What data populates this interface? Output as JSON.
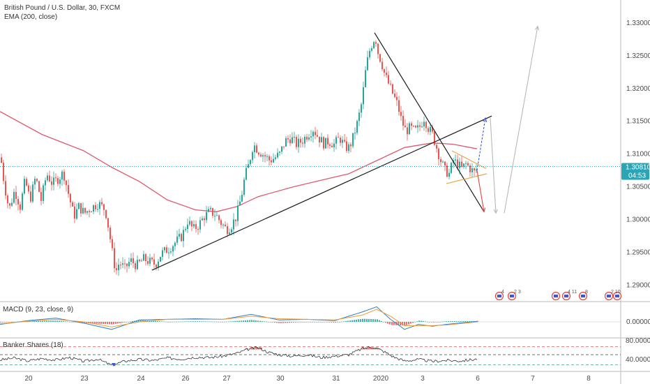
{
  "header": {
    "symbol_line": "British Pound / U.S. Dollar, 30, FXCM",
    "indicator_line": "EMA (200, close)"
  },
  "price_axis": {
    "ticks": [
      "1.33000",
      "1.32500",
      "1.32000",
      "1.31500",
      "1.31000",
      "1.30500",
      "1.30000",
      "1.29500",
      "1.29000"
    ],
    "current_price": "1.30810",
    "countdown": "04:53"
  },
  "macd_panel": {
    "label": "MACD (9, 23, close, 9)",
    "tick": "0.00000"
  },
  "rsi_panel": {
    "label": "Banker Shares (18)",
    "ticks": [
      "80.00000",
      "40.00000"
    ]
  },
  "time_axis": {
    "labels": [
      "20",
      "23",
      "24",
      "26",
      "27",
      "30",
      "31",
      "2020",
      "3",
      "6",
      "7",
      "8"
    ]
  },
  "event_markers": [
    "4",
    "2 3",
    "4 11",
    "8",
    "2 10"
  ],
  "colors": {
    "up": "#26a69a",
    "down": "#ef5350",
    "ema": "#e05a6d",
    "price_line": "#2aa5b6",
    "macd": "#2e7ec9",
    "signal": "#f39a32"
  },
  "chart_data": {
    "type": "candlestick",
    "instrument": "British Pound / U.S. Dollar",
    "timeframe": "30",
    "ylim": [
      1.2875,
      1.3335
    ],
    "y_ticks": [
      1.29,
      1.295,
      1.3,
      1.305,
      1.31,
      1.315,
      1.32,
      1.325,
      1.33
    ],
    "current_price": 1.3081,
    "price_path": [
      [
        0,
        1.3095
      ],
      [
        5,
        1.3055
      ],
      [
        12,
        1.3015
      ],
      [
        20,
        1.3045
      ],
      [
        28,
        1.302
      ],
      [
        35,
        1.306
      ],
      [
        42,
        1.303
      ],
      [
        50,
        1.3065
      ],
      [
        58,
        1.303
      ],
      [
        66,
        1.307
      ],
      [
        74,
        1.3055
      ],
      [
        82,
        1.3062
      ],
      [
        90,
        1.3072
      ],
      [
        97,
        1.304
      ],
      [
        105,
        1.3005
      ],
      [
        112,
        1.302
      ],
      [
        120,
        1.301
      ],
      [
        130,
        1.3018
      ],
      [
        140,
        1.3025
      ],
      [
        150,
        1.3015
      ],
      [
        155,
        1.2985
      ],
      [
        160,
        1.295
      ],
      [
        165,
        1.292
      ],
      [
        170,
        1.2935
      ],
      [
        178,
        1.2925
      ],
      [
        186,
        1.2938
      ],
      [
        195,
        1.293
      ],
      [
        205,
        1.294
      ],
      [
        215,
        1.2935
      ],
      [
        222,
        1.2932
      ],
      [
        230,
        1.2948
      ],
      [
        240,
        1.2955
      ],
      [
        250,
        1.2965
      ],
      [
        260,
        1.2975
      ],
      [
        268,
        1.2998
      ],
      [
        276,
        1.2985
      ],
      [
        284,
        1.2992
      ],
      [
        292,
        1.3005
      ],
      [
        300,
        1.3012
      ],
      [
        308,
        1.3008
      ],
      [
        316,
        1.2995
      ],
      [
        324,
        1.2985
      ],
      [
        330,
        1.299
      ],
      [
        338,
        1.3005
      ],
      [
        345,
        1.3035
      ],
      [
        350,
        1.3065
      ],
      [
        356,
        1.3085
      ],
      [
        362,
        1.3115
      ],
      [
        370,
        1.3105
      ],
      [
        378,
        1.3098
      ],
      [
        386,
        1.309
      ],
      [
        394,
        1.3095
      ],
      [
        400,
        1.31
      ],
      [
        408,
        1.312
      ],
      [
        416,
        1.3125
      ],
      [
        424,
        1.3115
      ],
      [
        432,
        1.312
      ],
      [
        440,
        1.313
      ],
      [
        448,
        1.3138
      ],
      [
        456,
        1.3125
      ],
      [
        464,
        1.3115
      ],
      [
        470,
        1.312
      ],
      [
        478,
        1.3115
      ],
      [
        486,
        1.3125
      ],
      [
        494,
        1.311
      ],
      [
        500,
        1.311
      ],
      [
        506,
        1.3128
      ],
      [
        512,
        1.315
      ],
      [
        518,
        1.318
      ],
      [
        523,
        1.3225
      ],
      [
        528,
        1.3255
      ],
      [
        533,
        1.327
      ],
      [
        537,
        1.328
      ],
      [
        541,
        1.3255
      ],
      [
        546,
        1.324
      ],
      [
        551,
        1.322
      ],
      [
        557,
        1.3205
      ],
      [
        563,
        1.319
      ],
      [
        569,
        1.3175
      ],
      [
        575,
        1.315
      ],
      [
        581,
        1.3135
      ],
      [
        587,
        1.314
      ],
      [
        594,
        1.3135
      ],
      [
        600,
        1.314
      ],
      [
        607,
        1.3155
      ],
      [
        613,
        1.314
      ],
      [
        619,
        1.313
      ],
      [
        625,
        1.311
      ],
      [
        631,
        1.309
      ],
      [
        637,
        1.3075
      ],
      [
        643,
        1.307
      ],
      [
        649,
        1.309
      ],
      [
        655,
        1.3085
      ],
      [
        661,
        1.3078
      ],
      [
        667,
        1.3085
      ],
      [
        673,
        1.3078
      ],
      [
        679,
        1.3072
      ],
      [
        685,
        1.3081
      ]
    ],
    "ema_200": [
      [
        0,
        1.3165
      ],
      [
        60,
        1.313
      ],
      [
        120,
        1.3105
      ],
      [
        160,
        1.308
      ],
      [
        200,
        1.3058
      ],
      [
        240,
        1.303
      ],
      [
        280,
        1.3015
      ],
      [
        310,
        1.3012
      ],
      [
        340,
        1.302
      ],
      [
        370,
        1.3035
      ],
      [
        420,
        1.305
      ],
      [
        460,
        1.306
      ],
      [
        500,
        1.307
      ],
      [
        540,
        1.309
      ],
      [
        580,
        1.311
      ],
      [
        620,
        1.3117
      ],
      [
        650,
        1.3115
      ],
      [
        684,
        1.3108
      ]
    ],
    "trendlines": [
      {
        "from": [
          218,
          1.2923
        ],
        "to": [
          705,
          1.3158
        ]
      },
      {
        "from": [
          537,
          1.3285
        ],
        "to": [
          694,
          1.3012
        ]
      }
    ],
    "wedge": [
      {
        "from": [
          648,
          1.3105
        ],
        "to": [
          697,
          1.3078
        ]
      },
      {
        "from": [
          640,
          1.3055
        ],
        "to": [
          698,
          1.307
        ]
      }
    ],
    "projection_arrows": [
      {
        "color": "blue",
        "from": [
          684,
          1.3075
        ],
        "to": [
          696,
          1.3155
        ]
      },
      {
        "color": "red",
        "from": [
          684,
          1.3075
        ],
        "to": [
          694,
          1.3012
        ]
      },
      {
        "color": "grey",
        "from": [
          703,
          1.3155
        ],
        "to": [
          711,
          1.301
        ]
      },
      {
        "color": "grey",
        "from": [
          723,
          1.301
        ],
        "to": [
          771,
          1.3295
        ]
      }
    ],
    "macd": {
      "label": "MACD (9, 23, close, 9)",
      "macd_line": [
        [
          0,
          -0.0004
        ],
        [
          40,
          0.0002
        ],
        [
          80,
          0.0006
        ],
        [
          120,
          -0.0002
        ],
        [
          160,
          -0.0012
        ],
        [
          200,
          0.0003
        ],
        [
          240,
          0.0004
        ],
        [
          280,
          0.0005
        ],
        [
          320,
          0.0004
        ],
        [
          360,
          0.0012
        ],
        [
          400,
          0.0003
        ],
        [
          440,
          0.0004
        ],
        [
          480,
          0.0002
        ],
        [
          520,
          0.0016
        ],
        [
          540,
          0.0024
        ],
        [
          560,
          0.0004
        ],
        [
          580,
          -0.0012
        ],
        [
          600,
          -0.0004
        ],
        [
          620,
          -0.0007
        ],
        [
          640,
          -0.0004
        ],
        [
          685,
          0.0001
        ]
      ],
      "signal_line": [
        [
          0,
          -0.0003
        ],
        [
          40,
          0.0001
        ],
        [
          80,
          0.0004
        ],
        [
          120,
          0.0
        ],
        [
          160,
          -0.0008
        ],
        [
          200,
          0.0
        ],
        [
          240,
          0.0004
        ],
        [
          280,
          0.0004
        ],
        [
          320,
          0.0004
        ],
        [
          360,
          0.0009
        ],
        [
          400,
          0.0005
        ],
        [
          440,
          0.0004
        ],
        [
          480,
          0.0003
        ],
        [
          520,
          0.0011
        ],
        [
          540,
          0.002
        ],
        [
          560,
          0.0009
        ],
        [
          580,
          -0.0006
        ],
        [
          600,
          -0.0006
        ],
        [
          620,
          -0.0006
        ],
        [
          640,
          -0.0005
        ],
        [
          685,
          0.0
        ]
      ]
    },
    "banker_shares": {
      "label": "Banker Shares (18)",
      "ylim": [
        20,
        90
      ],
      "levels": [
        72,
        55,
        34
      ],
      "line": [
        [
          0,
          44
        ],
        [
          20,
          48
        ],
        [
          40,
          42
        ],
        [
          60,
          47
        ],
        [
          80,
          44
        ],
        [
          100,
          49
        ],
        [
          120,
          41
        ],
        [
          140,
          46
        ],
        [
          160,
          33
        ],
        [
          180,
          42
        ],
        [
          200,
          45
        ],
        [
          220,
          43
        ],
        [
          240,
          48
        ],
        [
          260,
          46
        ],
        [
          280,
          50
        ],
        [
          300,
          49
        ],
        [
          320,
          52
        ],
        [
          340,
          58
        ],
        [
          355,
          66
        ],
        [
          370,
          70
        ],
        [
          385,
          60
        ],
        [
          400,
          55
        ],
        [
          420,
          52
        ],
        [
          440,
          55
        ],
        [
          460,
          49
        ],
        [
          480,
          52
        ],
        [
          500,
          55
        ],
        [
          520,
          68
        ],
        [
          535,
          72
        ],
        [
          550,
          62
        ],
        [
          565,
          50
        ],
        [
          580,
          42
        ],
        [
          600,
          45
        ],
        [
          620,
          41
        ],
        [
          640,
          43
        ],
        [
          660,
          42
        ],
        [
          685,
          46
        ]
      ]
    }
  }
}
